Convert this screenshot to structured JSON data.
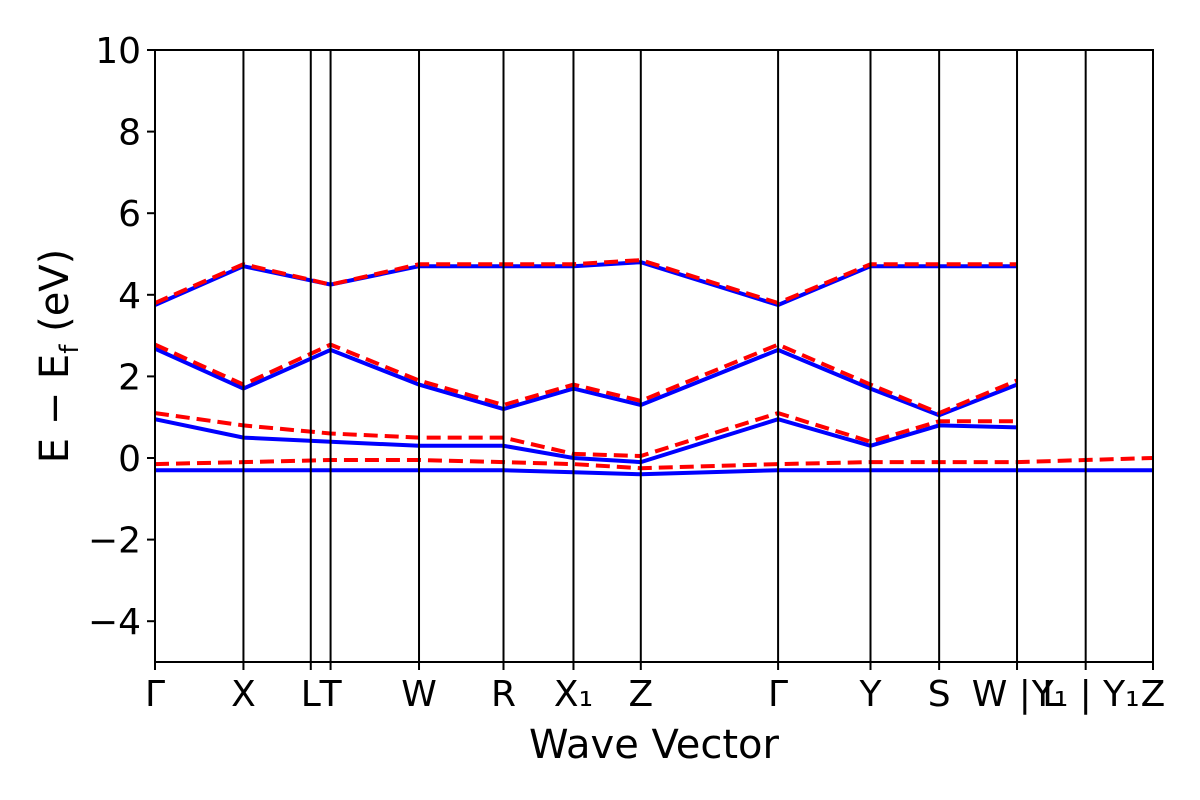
{
  "chart_data": {
    "type": "line",
    "xlabel": "Wave Vector",
    "ylabel": "E − E_f (eV)",
    "ylim": [
      -5,
      10
    ],
    "yticks": [
      -4,
      -2,
      0,
      2,
      4,
      6,
      8,
      10
    ],
    "grid": false,
    "kpoint_labels": [
      "Γ",
      "X",
      "L",
      "T",
      "W",
      "R",
      "X₁",
      "Z",
      "Γ",
      "Y",
      "S",
      "W | L",
      "Y₁ | Y₁",
      "Z"
    ],
    "kpoints": [
      {
        "label": "Γ",
        "x": 0.0
      },
      {
        "label": "X",
        "x": 0.067
      },
      {
        "label": "L",
        "x": 0.118
      },
      {
        "label": "T",
        "x": 0.133
      },
      {
        "label": "W",
        "x": 0.2
      },
      {
        "label": "R",
        "x": 0.264
      },
      {
        "label": "X₁",
        "x": 0.317
      },
      {
        "label": "Z",
        "x": 0.368
      },
      {
        "label": "Γ",
        "x": 0.472
      },
      {
        "label": "Y",
        "x": 0.542
      },
      {
        "label": "S",
        "x": 0.594
      },
      {
        "label": "W | L",
        "x": 0.653
      },
      {
        "label": "Y₁ | Y₁",
        "x": 0.705
      },
      {
        "label": "Z",
        "x": 0.756
      }
    ],
    "series": [
      {
        "color": "#0000ff",
        "style": "solid",
        "selected_bands": [
          {
            "points": [
              [
                0.0,
                2.68
              ],
              [
                0.067,
                1.7
              ],
              [
                0.133,
                2.65
              ],
              [
                0.2,
                1.8
              ],
              [
                0.264,
                1.2
              ],
              [
                0.317,
                1.7
              ],
              [
                0.368,
                1.3
              ],
              [
                0.472,
                2.65
              ],
              [
                0.542,
                1.7
              ],
              [
                0.594,
                1.05
              ],
              [
                0.653,
                1.8
              ]
            ]
          },
          {
            "points": [
              [
                0.0,
                0.95
              ],
              [
                0.067,
                0.5
              ],
              [
                0.133,
                0.4
              ],
              [
                0.2,
                0.3
              ],
              [
                0.264,
                0.3
              ],
              [
                0.317,
                0.0
              ],
              [
                0.368,
                -0.1
              ],
              [
                0.472,
                0.95
              ],
              [
                0.542,
                0.3
              ],
              [
                0.594,
                0.8
              ],
              [
                0.653,
                0.75
              ]
            ]
          },
          {
            "points": [
              [
                0.0,
                -0.3
              ],
              [
                0.067,
                -0.3
              ],
              [
                0.133,
                -0.3
              ],
              [
                0.2,
                -0.3
              ],
              [
                0.264,
                -0.3
              ],
              [
                0.317,
                -0.35
              ],
              [
                0.368,
                -0.4
              ],
              [
                0.472,
                -0.3
              ],
              [
                0.542,
                -0.3
              ],
              [
                0.594,
                -0.3
              ],
              [
                0.653,
                -0.3
              ],
              [
                0.705,
                -0.3
              ],
              [
                0.756,
                -0.3
              ]
            ]
          },
          {
            "points": [
              [
                0.0,
                3.75
              ],
              [
                0.067,
                4.7
              ],
              [
                0.133,
                4.25
              ],
              [
                0.2,
                4.7
              ],
              [
                0.264,
                4.7
              ],
              [
                0.317,
                4.7
              ],
              [
                0.368,
                4.8
              ],
              [
                0.472,
                3.75
              ],
              [
                0.542,
                4.7
              ],
              [
                0.594,
                4.7
              ],
              [
                0.653,
                4.7
              ]
            ]
          }
        ]
      },
      {
        "color": "#ff0000",
        "style": "dashed",
        "selected_bands": [
          {
            "points": [
              [
                0.0,
                2.78
              ],
              [
                0.067,
                1.8
              ],
              [
                0.133,
                2.78
              ],
              [
                0.2,
                1.9
              ],
              [
                0.264,
                1.3
              ],
              [
                0.317,
                1.8
              ],
              [
                0.368,
                1.4
              ],
              [
                0.472,
                2.78
              ],
              [
                0.542,
                1.8
              ],
              [
                0.594,
                1.1
              ],
              [
                0.653,
                1.9
              ]
            ]
          },
          {
            "points": [
              [
                0.0,
                1.1
              ],
              [
                0.067,
                0.8
              ],
              [
                0.133,
                0.6
              ],
              [
                0.2,
                0.5
              ],
              [
                0.264,
                0.5
              ],
              [
                0.317,
                0.1
              ],
              [
                0.368,
                0.05
              ],
              [
                0.472,
                1.1
              ],
              [
                0.542,
                0.4
              ],
              [
                0.594,
                0.9
              ],
              [
                0.653,
                0.9
              ]
            ]
          },
          {
            "points": [
              [
                0.0,
                -0.15
              ],
              [
                0.067,
                -0.1
              ],
              [
                0.133,
                -0.05
              ],
              [
                0.2,
                -0.05
              ],
              [
                0.264,
                -0.1
              ],
              [
                0.317,
                -0.15
              ],
              [
                0.368,
                -0.25
              ],
              [
                0.472,
                -0.15
              ],
              [
                0.542,
                -0.1
              ],
              [
                0.594,
                -0.1
              ],
              [
                0.653,
                -0.1
              ],
              [
                0.705,
                -0.05
              ],
              [
                0.756,
                0.0
              ]
            ]
          },
          {
            "points": [
              [
                0.0,
                3.8
              ],
              [
                0.067,
                4.75
              ],
              [
                0.133,
                4.25
              ],
              [
                0.2,
                4.75
              ],
              [
                0.264,
                4.75
              ],
              [
                0.317,
                4.75
              ],
              [
                0.368,
                4.85
              ],
              [
                0.472,
                3.8
              ],
              [
                0.542,
                4.75
              ],
              [
                0.594,
                4.75
              ],
              [
                0.653,
                4.75
              ]
            ]
          }
        ]
      }
    ]
  }
}
